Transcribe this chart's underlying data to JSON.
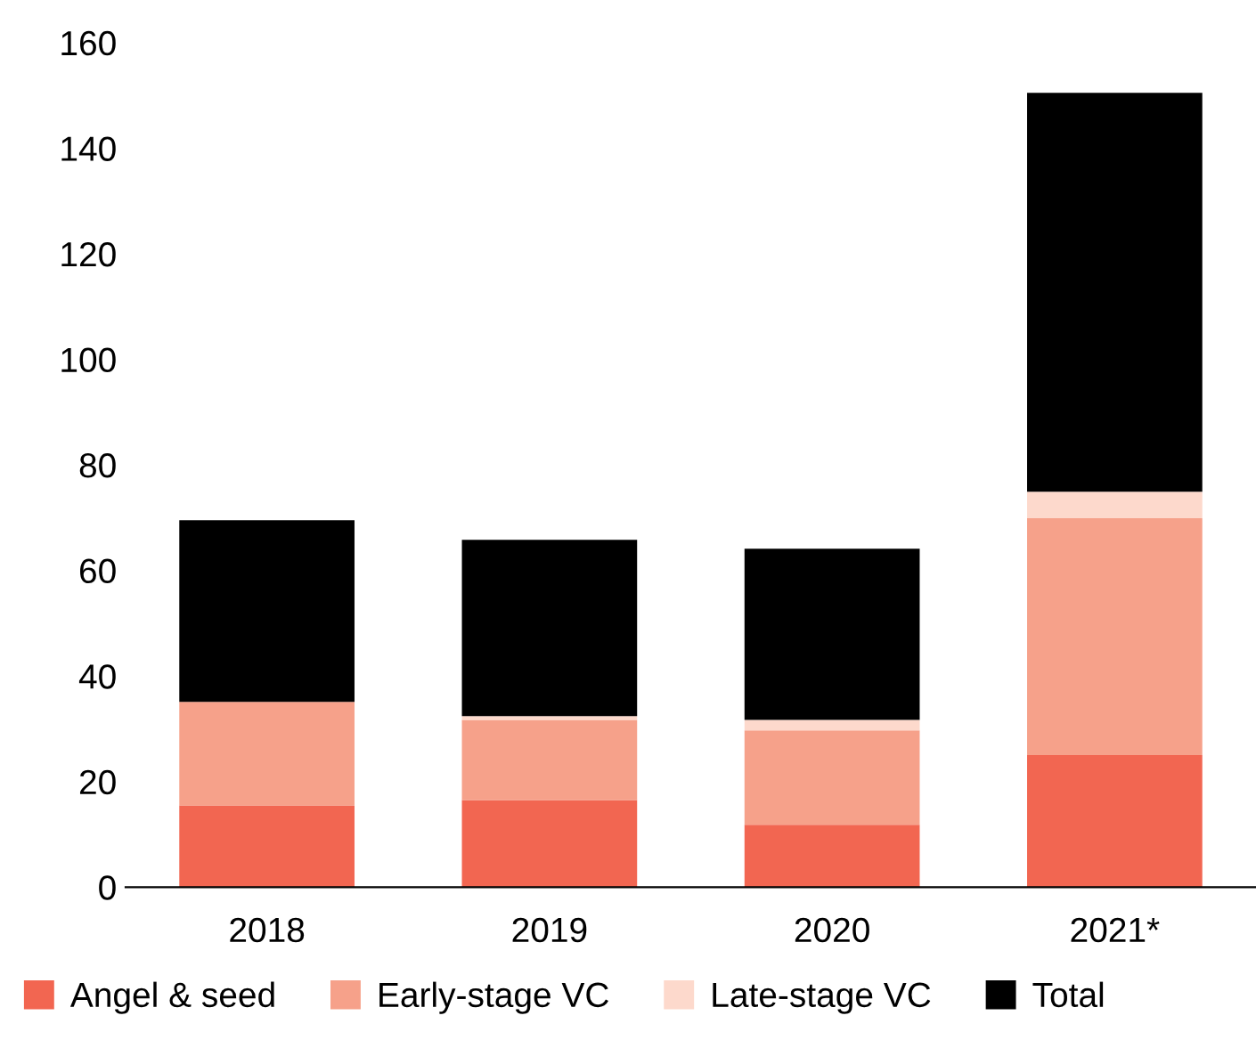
{
  "chart_data": {
    "type": "bar",
    "stacked": true,
    "categories": [
      "2018",
      "2019",
      "2020",
      "2021*"
    ],
    "series": [
      {
        "name": "Angel & seed",
        "color": "#f26651",
        "values": [
          15.5,
          16.5,
          11.8,
          25.0
        ]
      },
      {
        "name": "Early-stage VC",
        "color": "#f6a18a",
        "values": [
          19.6,
          15.2,
          17.9,
          44.9
        ]
      },
      {
        "name": "Late-stage VC",
        "color": "#fdd9cc",
        "values": [
          0,
          0.7,
          2.0,
          5.0
        ]
      },
      {
        "name": "Total",
        "color": "#000000",
        "values": [
          34.4,
          33.4,
          32.4,
          75.6
        ]
      }
    ],
    "ylim": [
      0,
      160
    ],
    "yticks": [
      0,
      20,
      40,
      60,
      80,
      100,
      120,
      140,
      160
    ],
    "grid": false,
    "legend": "bottom"
  }
}
